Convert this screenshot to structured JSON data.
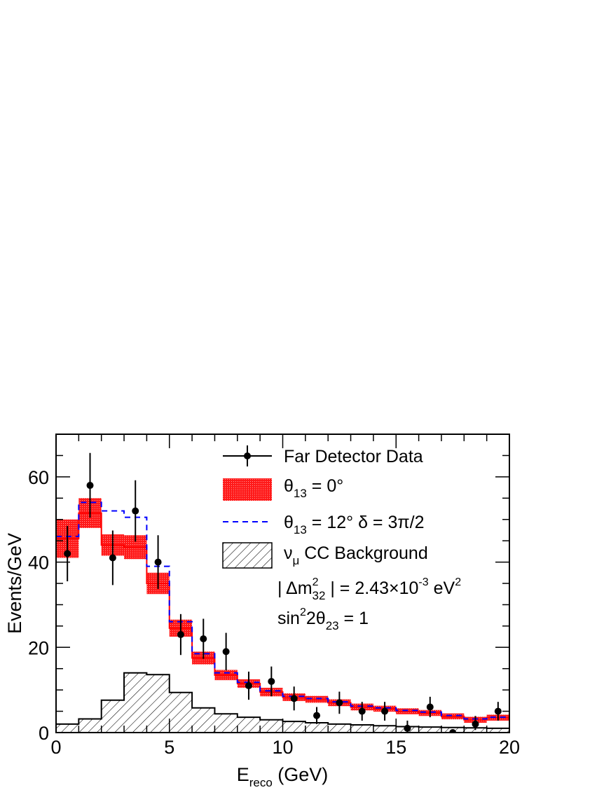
{
  "chart_data": {
    "type": "histogram",
    "xlabel": {
      "main": "E",
      "sub": "reco",
      "rest": " (GeV)"
    },
    "ylabel": "Events/GeV",
    "xlim": [
      0,
      20
    ],
    "ylim": [
      0,
      70
    ],
    "x_ticks": [
      "0",
      "5",
      "10",
      "15",
      "20"
    ],
    "y_ticks": [
      "0",
      "20",
      "40",
      "60"
    ],
    "grid": false,
    "legend_position": "top-right",
    "bin_edges": [
      0,
      1,
      2,
      3,
      4,
      5,
      6,
      7,
      8,
      9,
      10,
      11,
      12,
      13,
      14,
      15,
      16,
      17,
      18,
      19,
      20
    ],
    "series": [
      {
        "name": "Far Detector Data",
        "kind": "points-with-errors",
        "x": [
          0.5,
          1.5,
          2.5,
          3.5,
          4.5,
          5.5,
          6.5,
          7.5,
          8.5,
          9.5,
          10.5,
          11.5,
          12.5,
          13.5,
          14.5,
          15.5,
          16.5,
          17.5,
          18.5,
          19.5
        ],
        "values": [
          42,
          58,
          41,
          52,
          40,
          23,
          22,
          19,
          11,
          12,
          8,
          4,
          7,
          5,
          5,
          1,
          6,
          0,
          2,
          5
        ],
        "err_low": [
          6.5,
          7.6,
          6.4,
          7.2,
          6.3,
          4.8,
          4.7,
          4.4,
          3.3,
          3.5,
          2.8,
          2.0,
          2.6,
          2.2,
          2.2,
          1.0,
          2.4,
          0,
          1.4,
          2.2
        ],
        "err_high": [
          6.5,
          7.6,
          6.4,
          7.2,
          6.3,
          4.8,
          4.7,
          4.4,
          3.3,
          3.5,
          2.8,
          2.0,
          2.6,
          2.2,
          2.2,
          1.8,
          2.4,
          0,
          1.9,
          2.2
        ],
        "color": "#000000"
      },
      {
        "name": "θ13 = 0°",
        "kind": "band",
        "central": [
          45.5,
          51.5,
          44.0,
          43.5,
          35.0,
          24.5,
          17.5,
          13.5,
          11.5,
          9.5,
          8.3,
          7.8,
          7.0,
          6.0,
          5.6,
          5.0,
          4.6,
          3.8,
          3.0,
          3.5
        ],
        "half_width": [
          4.5,
          3.5,
          2.5,
          2.8,
          2.5,
          2.0,
          1.5,
          1.2,
          1.0,
          1.0,
          0.9,
          0.8,
          0.8,
          0.8,
          0.7,
          0.7,
          0.7,
          0.7,
          0.7,
          0.7
        ],
        "color": "#ff0000"
      },
      {
        "name": "θ13 = 12°  δ = 3π/2",
        "kind": "step-dashed",
        "values": [
          46.0,
          54.0,
          52.0,
          50.5,
          39.0,
          26.0,
          18.5,
          14.0,
          11.8,
          9.8,
          8.5,
          8.0,
          7.2,
          6.2,
          5.8,
          5.2,
          4.8,
          4.0,
          3.2,
          3.6
        ],
        "color": "#0000ff"
      },
      {
        "name": "νμ CC Background",
        "kind": "hatched-step",
        "values": [
          2.0,
          3.2,
          7.6,
          14.0,
          13.6,
          9.4,
          5.8,
          4.4,
          3.6,
          3.0,
          2.6,
          2.3,
          2.0,
          1.8,
          1.6,
          1.4,
          1.3,
          1.2,
          1.1,
          1.0
        ],
        "color": "#000000"
      }
    ],
    "legend": [
      {
        "label": "Far Detector Data"
      },
      {
        "label_main": "θ",
        "label_sub": "13",
        "label_rest": " = 0°"
      },
      {
        "label_main": "θ",
        "label_sub": "13",
        "label_rest": " = 12°  δ = 3π/2"
      },
      {
        "label_main": "ν",
        "label_sub": "μ",
        "label_rest": " CC Background"
      }
    ],
    "annotations": [
      {
        "parts": [
          "| Δm",
          "2",
          "32",
          " | = 2.43×10",
          "-3",
          " eV",
          "2"
        ]
      },
      {
        "parts": [
          "sin",
          "2",
          "2θ",
          "23",
          " = 1"
        ]
      }
    ]
  }
}
